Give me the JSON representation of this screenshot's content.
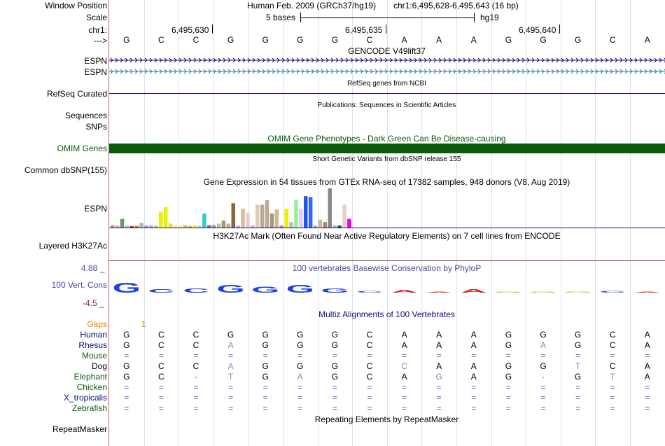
{
  "header": {
    "window_position_label": "Window Position",
    "scale_label": "Scale",
    "chrom_label": "chr1:",
    "strand_label": "--->",
    "assembly_text": "Human Feb. 2009 (GRCh37/hg19)",
    "position_text": "chr1:6,495,628-6,495,643 (16 bp)",
    "scale_text": "5 bases",
    "db_text": "hg19",
    "ticks": [
      "6,495,630",
      "6,495,635",
      "6,495,640"
    ]
  },
  "sequence": [
    "G",
    "C",
    "C",
    "G",
    "G",
    "G",
    "G",
    "C",
    "A",
    "A",
    "A",
    "G",
    "G",
    "G",
    "C",
    "A"
  ],
  "gencode": {
    "title": "GENCODE V49lift37",
    "tracks": [
      {
        "label": "ESPN",
        "color": "#0c0c78"
      },
      {
        "label": "ESPN",
        "color": "#2f7aa8"
      }
    ]
  },
  "refseq": {
    "title": "RefSeq genes from NCBI",
    "label": "RefSeq Curated",
    "color": "#0c0c78"
  },
  "publications": {
    "title": "Publications: Sequences in Scientific Articles",
    "label_sequences": "Sequences",
    "label_snps": "SNPs"
  },
  "omim": {
    "title": "OMIM Gene Phenotypes - Dark Green Can Be Disease-causing",
    "label": "OMIM Genes",
    "color": "#0a5a0a"
  },
  "dbsnp": {
    "title": "Short Genetic Variants from dbSNP release 155",
    "label": "Common dbSNP(155)"
  },
  "gtex": {
    "title": "Gene Expression in 54 tissues from GTEx RNA-seq of 17382 samples, 948 donors (V8, Aug 2019)",
    "label": "ESPN",
    "bars": [
      {
        "v": 0.06,
        "c": "#dd8888"
      },
      {
        "v": 0.05,
        "c": "#e8a0a0"
      },
      {
        "v": 0.22,
        "c": "#669966"
      },
      {
        "v": 0.05,
        "c": "#c0c0c0"
      },
      {
        "v": 0.04,
        "c": "#aa4444"
      },
      {
        "v": 0.04,
        "c": "#ff6600"
      },
      {
        "v": 0.12,
        "c": "#aabbaa"
      },
      {
        "v": 0.05,
        "c": "#bb88cc"
      },
      {
        "v": 0.05,
        "c": "#aaaaaa"
      },
      {
        "v": 0.05,
        "c": "#ccbbaa"
      },
      {
        "v": 0.4,
        "c": "#eeee00"
      },
      {
        "v": 0.52,
        "c": "#eeee00"
      },
      {
        "v": 0.1,
        "c": "#dddd44"
      },
      {
        "v": 0.05,
        "c": "#eeee66"
      },
      {
        "v": 0.06,
        "c": "#eeeeaa"
      },
      {
        "v": 0.06,
        "c": "#cccc33"
      },
      {
        "v": 0.04,
        "c": "#ddaa55"
      },
      {
        "v": 0.06,
        "c": "#eeee22"
      },
      {
        "v": 0.05,
        "c": "#cccccc"
      },
      {
        "v": 0.36,
        "c": "#33cccc"
      },
      {
        "v": 0.06,
        "c": "#777777"
      },
      {
        "v": 0.06,
        "c": "#999999"
      },
      {
        "v": 0.1,
        "c": "#bbbbbb"
      },
      {
        "v": 0.18,
        "c": "#aa9966"
      },
      {
        "v": 0.1,
        "c": "#ccaa88"
      },
      {
        "v": 0.62,
        "c": "#886644"
      },
      {
        "v": 0.05,
        "c": "#bbbbbb"
      },
      {
        "v": 0.48,
        "c": "#ddbb99"
      },
      {
        "v": 0.38,
        "c": "#eecccc"
      },
      {
        "v": 0.05,
        "c": "#bbbbbb"
      },
      {
        "v": 0.58,
        "c": "#ddccbb"
      },
      {
        "v": 0.58,
        "c": "#bbaa88"
      },
      {
        "v": 0.7,
        "c": "#bbaa99"
      },
      {
        "v": 0.36,
        "c": "#aa9977"
      },
      {
        "v": 0.46,
        "c": "#ccbb99"
      },
      {
        "v": 0.05,
        "c": "#999999"
      },
      {
        "v": 0.48,
        "c": "#eeee00"
      },
      {
        "v": 0.14,
        "c": "#bbbbbb"
      },
      {
        "v": 0.7,
        "c": "#99ee99"
      },
      {
        "v": 0.48,
        "c": "#ddccff"
      },
      {
        "v": 0.8,
        "c": "#2255ee"
      },
      {
        "v": 0.78,
        "c": "#3366ff"
      },
      {
        "v": 0.05,
        "c": "#aaaaaa"
      },
      {
        "v": 0.2,
        "c": "#ccbb99"
      },
      {
        "v": 0.14,
        "c": "#aa8866"
      },
      {
        "v": 1.0,
        "c": "#888888"
      },
      {
        "v": 0.06,
        "c": "#bbbbbb"
      },
      {
        "v": 0.05,
        "c": "#006633"
      },
      {
        "v": 0.58,
        "c": "#eecccc"
      },
      {
        "v": 0.22,
        "c": "#ee00ee"
      }
    ]
  },
  "h3k27ac": {
    "title": "H3K27Ac Mark (Often Found Near Active Regulatory Elements) on 7 cell lines from ENCODE",
    "label": "Layered H3K27Ac"
  },
  "conservation": {
    "title": "100 vertebrates Basewise Conservation by PhyloP",
    "label": "100 Vert. Cons",
    "y_max": "4.88 _",
    "y_min": "-4.5 _",
    "scores": [
      1.2,
      0.4,
      0.5,
      0.9,
      0.7,
      0.9,
      0.5,
      0.2,
      0.3,
      0.1,
      0.4,
      0.1,
      0.1,
      0.1,
      0.2,
      0.05
    ],
    "colors": {
      "A": "#e02020",
      "C": "#2040e0",
      "G": "#d0b010",
      "T": "#20a020",
      "main_G": "#2040e0"
    }
  },
  "multiz": {
    "title": "Multiz Alignments of 100 Vertebrates",
    "gaps_label": "Gaps",
    "gaps_marker": "1",
    "species": [
      {
        "name": "Human",
        "color": "#0c0c78",
        "bases": [
          "G",
          "C",
          "C",
          "G",
          "G",
          "G",
          "G",
          "C",
          "A",
          "A",
          "A",
          "G",
          "G",
          "G",
          "C",
          "A"
        ]
      },
      {
        "name": "Rhesus",
        "color": "#0c0c78",
        "bases": [
          "G",
          "C",
          "C",
          "A",
          "G",
          "G",
          "G",
          "C",
          "A",
          "A",
          "A",
          "G",
          "A",
          "G",
          "C",
          "A"
        ]
      },
      {
        "name": "Mouse",
        "color": "#0a5a0a",
        "bases": [
          "=",
          "=",
          "=",
          "=",
          "=",
          "=",
          "=",
          "=",
          "=",
          "=",
          "=",
          "=",
          "=",
          "=",
          "=",
          "="
        ]
      },
      {
        "name": "Dog",
        "color": "#000000",
        "bases": [
          "G",
          "C",
          "C",
          "A",
          "G",
          "G",
          "G",
          "C",
          "C",
          "A",
          "A",
          "G",
          "G",
          "T",
          "C",
          "A"
        ]
      },
      {
        "name": "Elephant",
        "color": "#0a5a0a",
        "bases": [
          "G",
          "C",
          "-",
          "T",
          "G",
          "A",
          "G",
          "C",
          "A",
          "G",
          "A",
          "G",
          "-",
          "G",
          "T",
          "A"
        ]
      },
      {
        "name": "Chicken",
        "color": "#0a5a0a",
        "bases": [
          "=",
          "=",
          "=",
          "=",
          "=",
          "=",
          "=",
          "=",
          "=",
          "=",
          "=",
          "=",
          "=",
          "=",
          "=",
          "="
        ]
      },
      {
        "name": "X_tropicalis",
        "color": "#0c0c78",
        "bases": [
          "=",
          "=",
          "=",
          "=",
          "=",
          "=",
          "=",
          "=",
          "=",
          "=",
          "=",
          "=",
          "=",
          "=",
          "=",
          "="
        ]
      },
      {
        "name": "Zebrafish",
        "color": "#0a5a0a",
        "bases": [
          "=",
          "=",
          "=",
          "=",
          "=",
          "=",
          "=",
          "=",
          "=",
          "=",
          "=",
          "=",
          "=",
          "=",
          "=",
          "="
        ]
      }
    ]
  },
  "repeatmasker": {
    "title": "Repeating Elements by RepeatMasker",
    "label": "RepeatMasker"
  }
}
